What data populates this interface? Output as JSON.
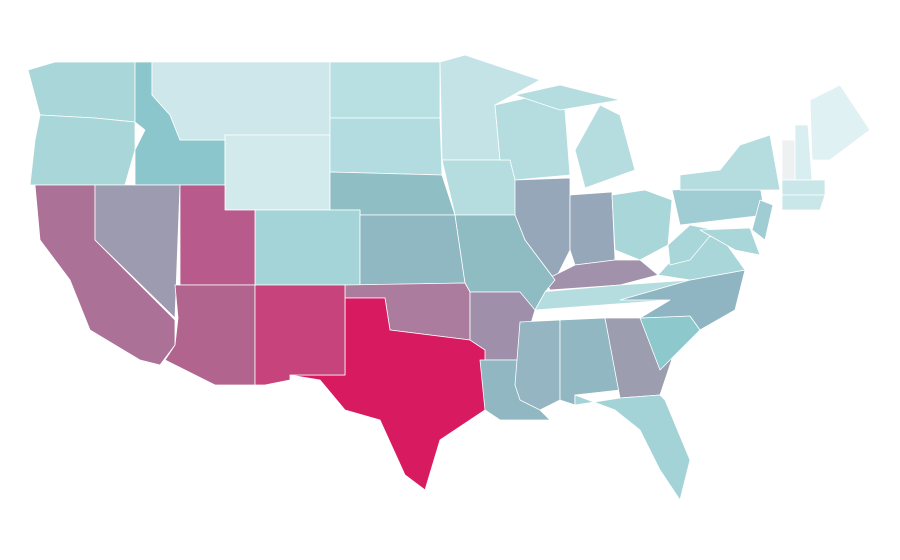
{
  "map": {
    "fills": [
      "#a8d6d9",
      "#a8d6d9",
      "#8ac6cb",
      "#cde7ea",
      "#d3eaed",
      "#b8dfe1",
      "#b2dcdf",
      "#8fbfc5",
      "#a5d4d8",
      "#8fb8c2",
      "#c4e3e6",
      "#b5dde0",
      "#b5dde0",
      "#b5dde0",
      "#b5dde0",
      "#95a7b8",
      "#95a7b8",
      "#a8d6d9",
      "#a191ab",
      "#b5dde0",
      "#8fbbc2",
      "#ab7c9e",
      "#a08fab",
      "#d81b60",
      "#90b7c2",
      "#95b5c2",
      "#90b7c2",
      "#9c9eb0",
      "#a3d3d7",
      "#8cc8cc",
      "#90b5c2",
      "#a8d6d9",
      "#a8d6d9",
      "#a0ccd4",
      "#b5dde0",
      "#a0ccd4",
      "#a8d6d9",
      "#eef1f2",
      "#d8eef0",
      "#e0f1f3",
      "#c9e6e9",
      "#c9e6e9",
      "#ac7196",
      "#9c9bb0",
      "#b85a8c",
      "#b0648e",
      "#c6447b"
    ]
  }
}
